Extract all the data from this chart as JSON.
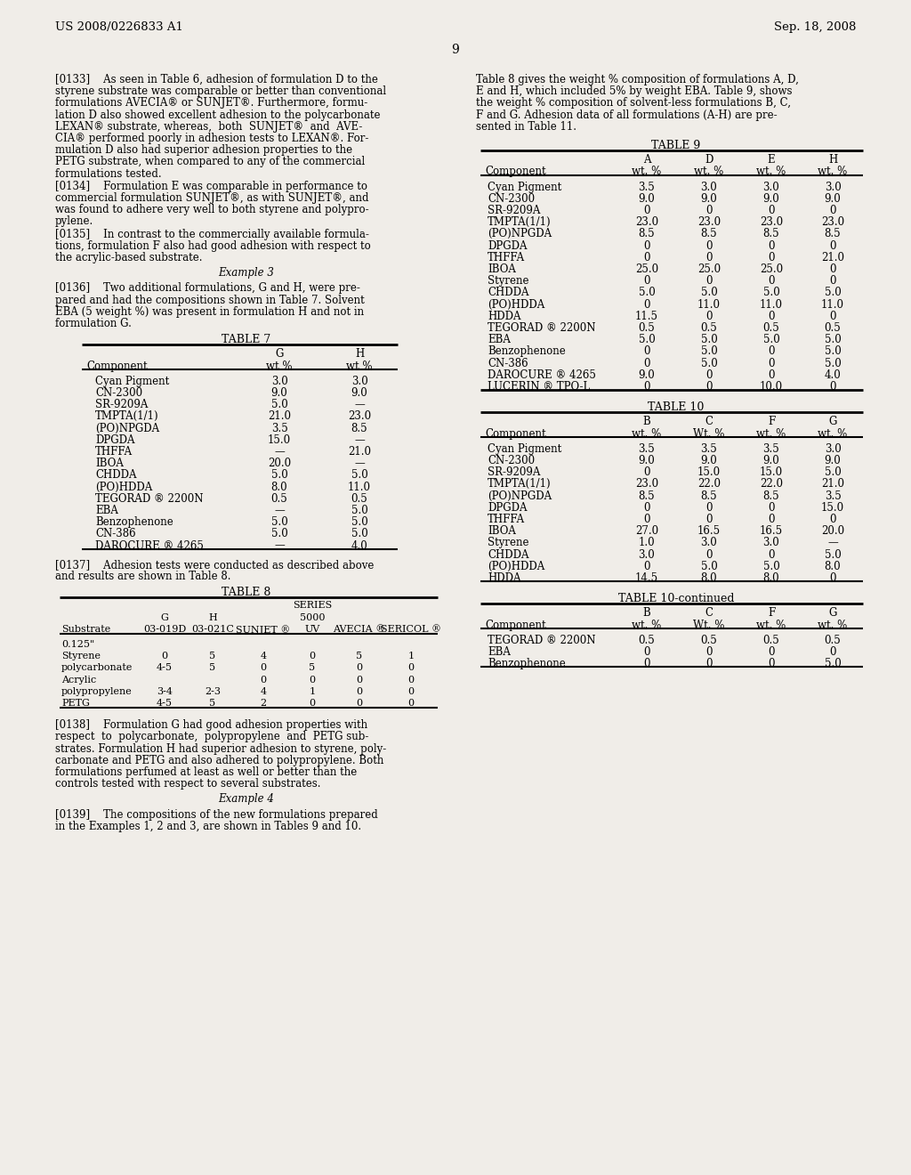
{
  "bg_color": "#f0ede8",
  "header_left": "US 2008/0226833 A1",
  "header_right": "Sep. 18, 2008",
  "page_num": "9",
  "table7": {
    "rows": [
      [
        "Cyan Pigment",
        "3.0",
        "3.0"
      ],
      [
        "CN-2300",
        "9.0",
        "9.0"
      ],
      [
        "SR-9209A",
        "5.0",
        "—"
      ],
      [
        "TMPTA(1/1)",
        "21.0",
        "23.0"
      ],
      [
        "(PO)NPGDA",
        "3.5",
        "8.5"
      ],
      [
        "DPGDA",
        "15.0",
        "—"
      ],
      [
        "THFFA",
        "—",
        "21.0"
      ],
      [
        "IBOA",
        "20.0",
        "—"
      ],
      [
        "CHDDA",
        "5.0",
        "5.0"
      ],
      [
        "(PO)HDDA",
        "8.0",
        "11.0"
      ],
      [
        "TEGORAD ® 2200N",
        "0.5",
        "0.5"
      ],
      [
        "EBA",
        "—",
        "5.0"
      ],
      [
        "Benzophenone",
        "5.0",
        "5.0"
      ],
      [
        "CN-386",
        "5.0",
        "5.0"
      ],
      [
        "DAROCURE ® 4265",
        "—",
        "4.0"
      ]
    ]
  },
  "table8": {
    "rows": [
      [
        "0.125\"\nStyrene",
        "0",
        "5",
        "4",
        "0",
        "5",
        "1"
      ],
      [
        "polycarbonate",
        "4-5",
        "5",
        "0",
        "5",
        "0",
        "0"
      ],
      [
        "Acrylic",
        "",
        "",
        "0",
        "0",
        "0",
        "0"
      ],
      [
        "polypropylene",
        "3-4",
        "2-3",
        "4",
        "1",
        "0",
        "0"
      ],
      [
        "PETG",
        "4-5",
        "5",
        "2",
        "0",
        "0",
        "0"
      ]
    ]
  },
  "table9": {
    "rows": [
      [
        "Cyan Pigment",
        "3.5",
        "3.0",
        "3.0",
        "3.0"
      ],
      [
        "CN-2300",
        "9.0",
        "9.0",
        "9.0",
        "9.0"
      ],
      [
        "SR-9209A",
        "0",
        "0",
        "0",
        "0"
      ],
      [
        "TMPTA(1/1)",
        "23.0",
        "23.0",
        "23.0",
        "23.0"
      ],
      [
        "(PO)NPGDA",
        "8.5",
        "8.5",
        "8.5",
        "8.5"
      ],
      [
        "DPGDA",
        "0",
        "0",
        "0",
        "0"
      ],
      [
        "THFFA",
        "0",
        "0",
        "0",
        "21.0"
      ],
      [
        "IBOA",
        "25.0",
        "25.0",
        "25.0",
        "0"
      ],
      [
        "Styrene",
        "0",
        "0",
        "0",
        "0"
      ],
      [
        "CHDDA",
        "5.0",
        "5.0",
        "5.0",
        "5.0"
      ],
      [
        "(PO)HDDA",
        "0",
        "11.0",
        "11.0",
        "11.0"
      ],
      [
        "HDDA",
        "11.5",
        "0",
        "0",
        "0"
      ],
      [
        "TEGORAD ® 2200N",
        "0.5",
        "0.5",
        "0.5",
        "0.5"
      ],
      [
        "EBA",
        "5.0",
        "5.0",
        "5.0",
        "5.0"
      ],
      [
        "Benzophenone",
        "0",
        "5.0",
        "0",
        "5.0"
      ],
      [
        "CN-386",
        "0",
        "5.0",
        "0",
        "5.0"
      ],
      [
        "DAROCURE ® 4265",
        "9.0",
        "0",
        "0",
        "4.0"
      ],
      [
        "LUCERIN ® TPO-L",
        "0",
        "0",
        "10.0",
        "0"
      ]
    ]
  },
  "table10": {
    "rows": [
      [
        "Cyan Pigment",
        "3.5",
        "3.5",
        "3.5",
        "3.0"
      ],
      [
        "CN-2300",
        "9.0",
        "9.0",
        "9.0",
        "9.0"
      ],
      [
        "SR-9209A",
        "0",
        "15.0",
        "15.0",
        "5.0"
      ],
      [
        "TMPTA(1/1)",
        "23.0",
        "22.0",
        "22.0",
        "21.0"
      ],
      [
        "(PO)NPGDA",
        "8.5",
        "8.5",
        "8.5",
        "3.5"
      ],
      [
        "DPGDA",
        "0",
        "0",
        "0",
        "15.0"
      ],
      [
        "THFFA",
        "0",
        "0",
        "0",
        "0"
      ],
      [
        "IBOA",
        "27.0",
        "16.5",
        "16.5",
        "20.0"
      ],
      [
        "Styrene",
        "1.0",
        "3.0",
        "3.0",
        "—"
      ],
      [
        "CHDDA",
        "3.0",
        "0",
        "0",
        "5.0"
      ],
      [
        "(PO)HDDA",
        "0",
        "5.0",
        "5.0",
        "8.0"
      ],
      [
        "HDDA",
        "14.5",
        "8.0",
        "8.0",
        "0"
      ]
    ]
  },
  "table10cont": {
    "rows": [
      [
        "TEGORAD ® 2200N",
        "0.5",
        "0.5",
        "0.5",
        "0.5"
      ],
      [
        "EBA",
        "0",
        "0",
        "0",
        "0"
      ],
      [
        "Benzophenone",
        "0",
        "0",
        "0",
        "5.0"
      ]
    ]
  }
}
